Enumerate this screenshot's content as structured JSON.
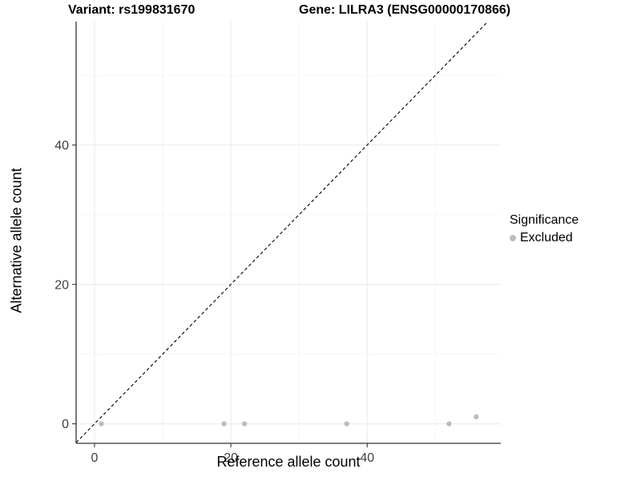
{
  "chart_data": {
    "type": "scatter",
    "title_left": "Variant: rs199831670",
    "title_right": "Gene: LILRA3 (ENSG00000170866)",
    "xlabel": "Reference allele count",
    "ylabel": "Alternative allele count",
    "x_ticks": [
      0,
      20,
      40
    ],
    "y_ticks": [
      0,
      20,
      40
    ],
    "x_minor_gridlines": [
      10,
      30,
      50
    ],
    "y_minor_gridlines": [
      10,
      30,
      50
    ],
    "xlim": [
      -2.7,
      59.6
    ],
    "ylim": [
      -2.8,
      57.7
    ],
    "grid": {
      "major_color": "#ebebeb",
      "minor_color": "#f5f5f5",
      "visible": true
    },
    "axis_line_color": "#333333",
    "tick_label_color": "#404040",
    "identity_line": {
      "style": "dashed",
      "color": "#000000",
      "from": [
        -2.7,
        -2.7
      ],
      "to": [
        57.7,
        57.7
      ]
    },
    "series": [
      {
        "name": "Excluded",
        "color": "#bdbdbd",
        "points": [
          {
            "x": 1,
            "y": 0
          },
          {
            "x": 19,
            "y": 0
          },
          {
            "x": 22,
            "y": 0
          },
          {
            "x": 37,
            "y": 0
          },
          {
            "x": 52,
            "y": 0
          },
          {
            "x": 56,
            "y": 1
          }
        ]
      }
    ],
    "legend": {
      "position": "right",
      "title": "Significance",
      "items": [
        {
          "label": "Excluded",
          "color": "#bdbdbd"
        }
      ]
    }
  }
}
